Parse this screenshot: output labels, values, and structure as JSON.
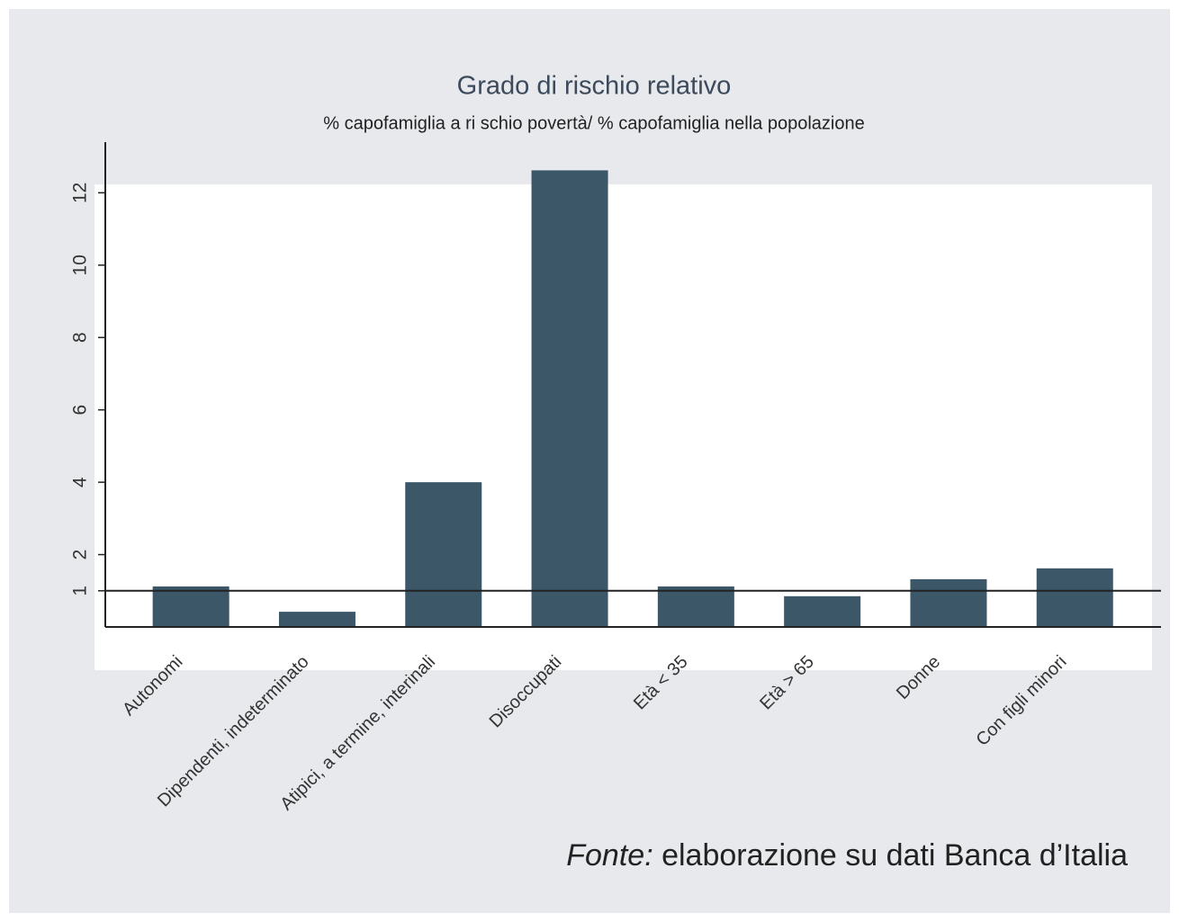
{
  "chart_data": {
    "type": "bar",
    "title": "Grado di rischio relativo",
    "subtitle": "% capofamiglia a ri schio povertà/ % capofamiglia nella popolazione",
    "categories": [
      "Autonomi",
      "Dipendenti, indeterminato",
      "Atipici, a termine, interinali",
      "Disoccupati",
      "Età < 35",
      "Età > 65",
      "Donne",
      "Con figli minori"
    ],
    "values": [
      1.12,
      0.42,
      4.0,
      12.62,
      1.12,
      0.85,
      1.32,
      1.62
    ],
    "color": "#3b5768",
    "ylim": [
      0,
      13.4
    ],
    "yticks": [
      1,
      2,
      4,
      6,
      8,
      10,
      12
    ],
    "reference_line": 1,
    "source_label": "Fonte:",
    "source": "elaborazione su dati Banca d’Italia"
  }
}
